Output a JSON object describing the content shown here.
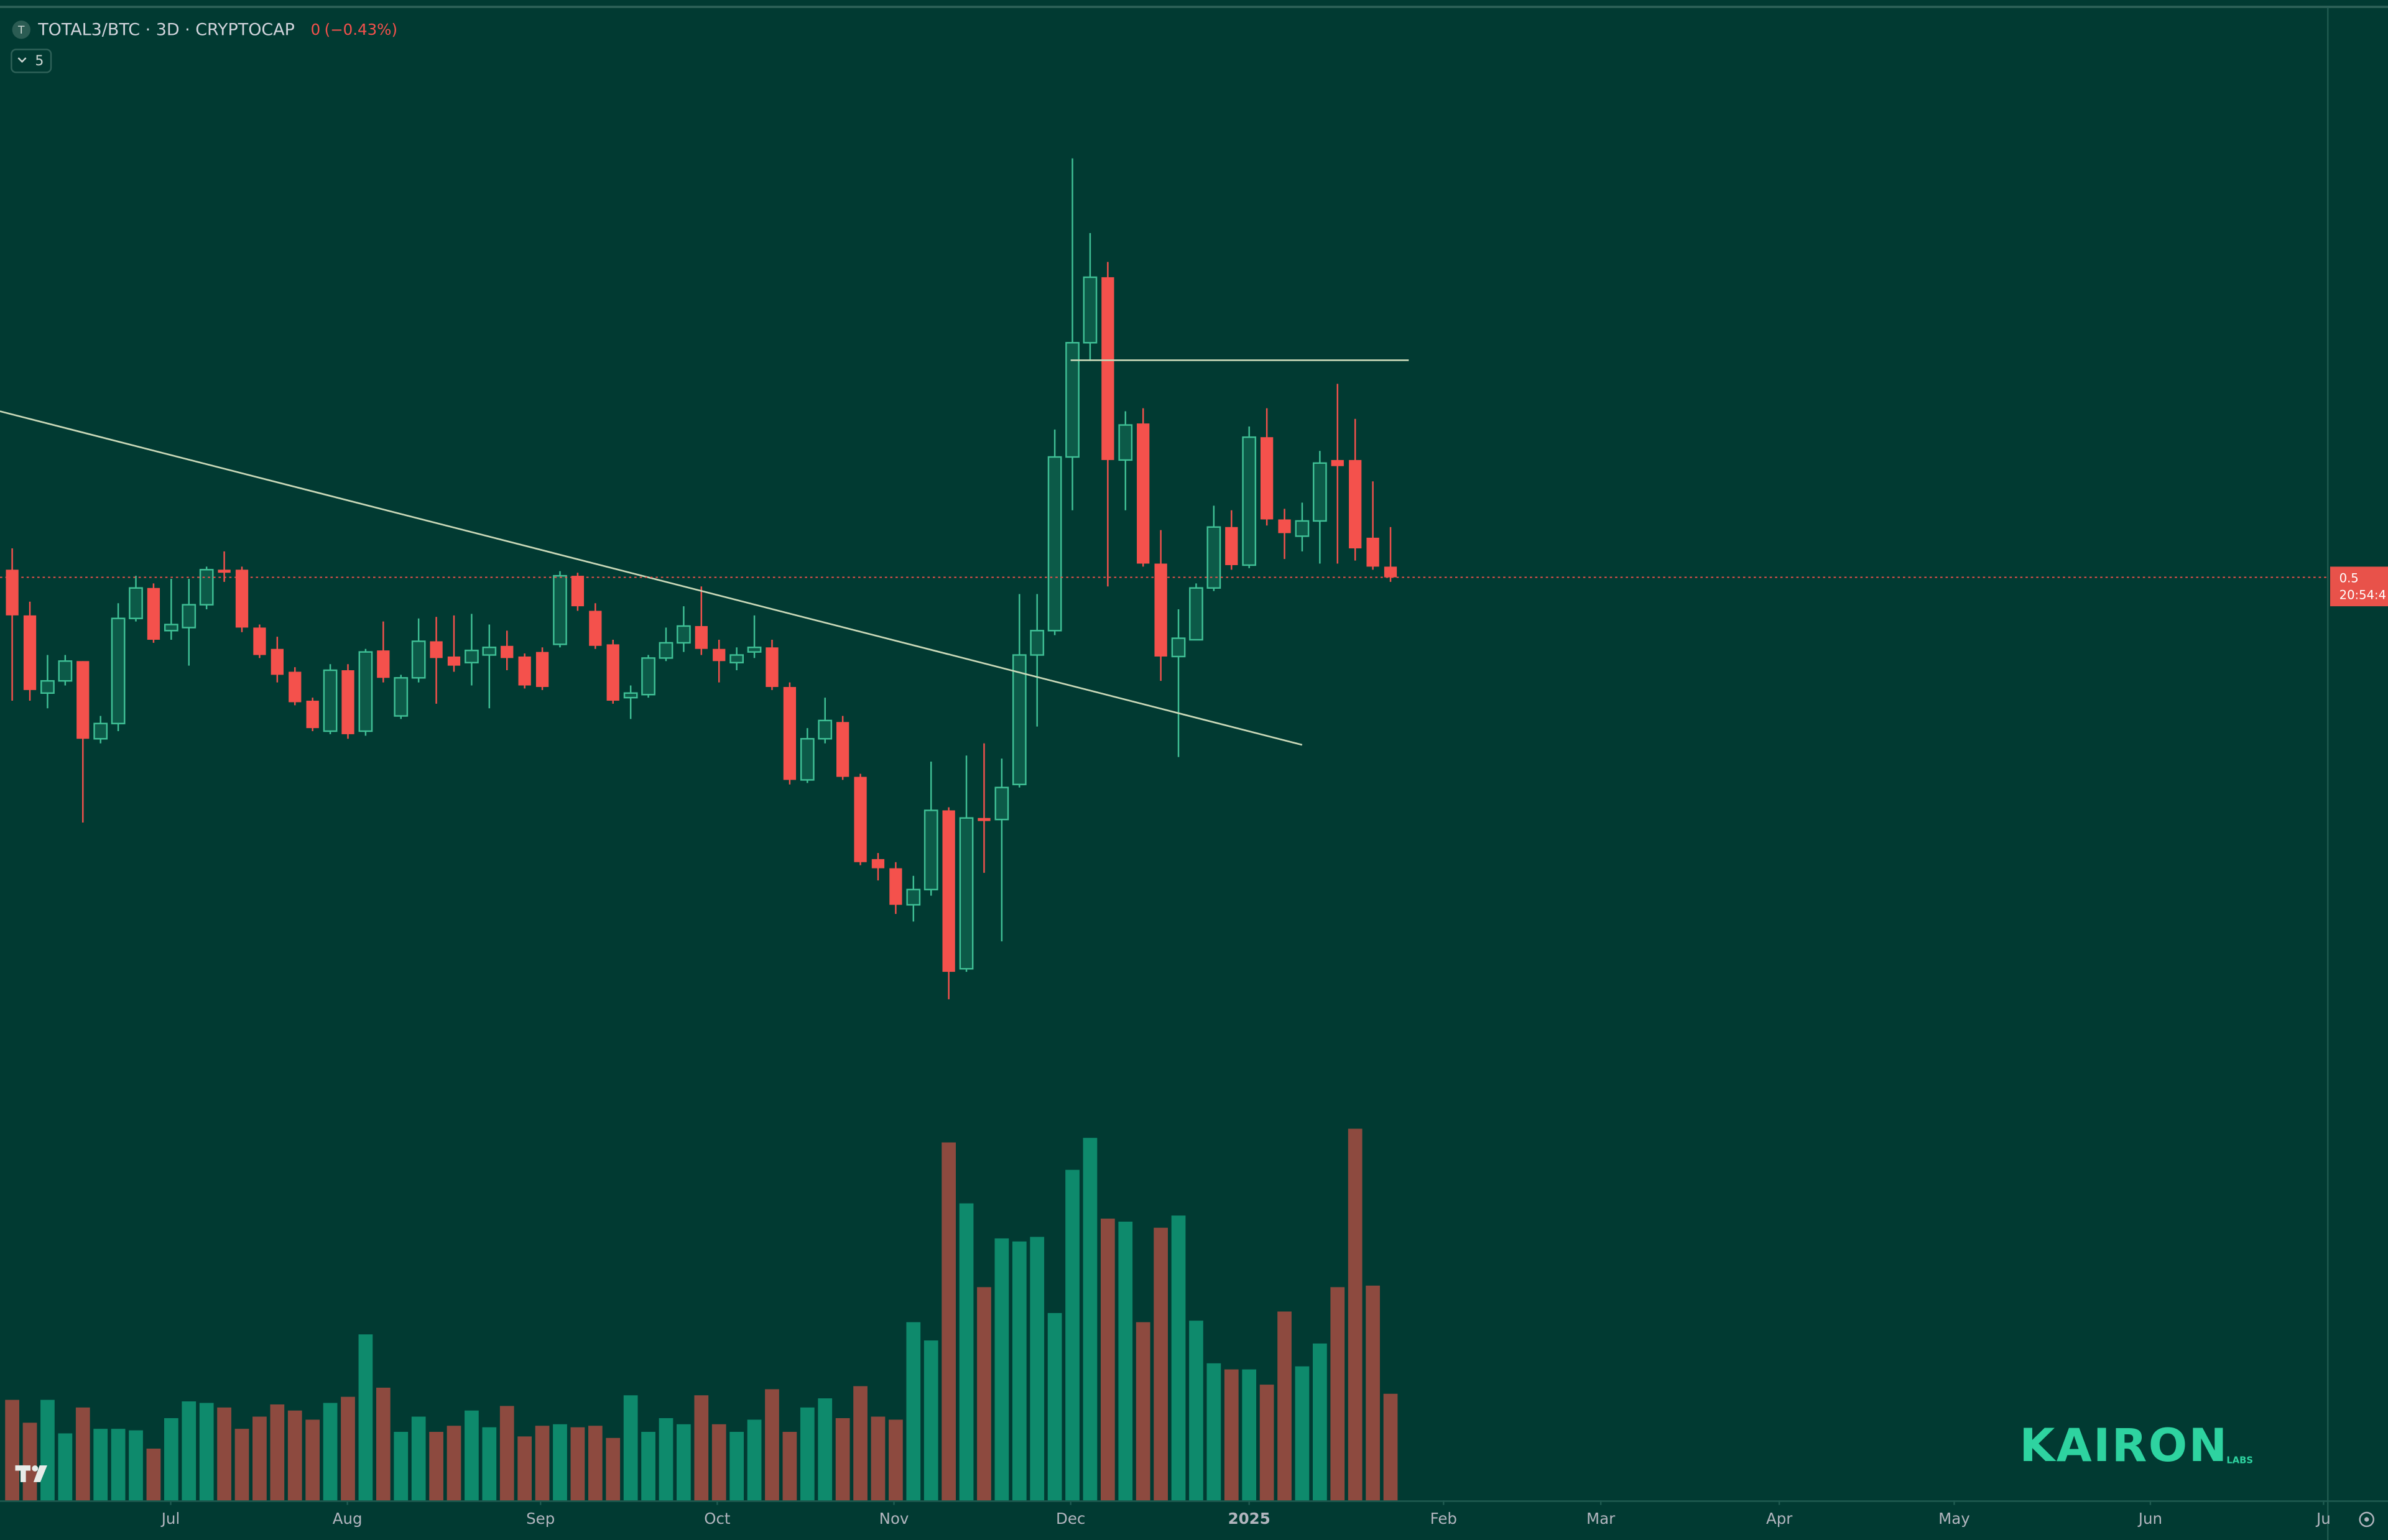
{
  "chart_data": {
    "type": "candlestick",
    "title": "TOTAL3/BTC · 3D · CRYPTOCAP",
    "change": 0,
    "change_percent": {
      "value": -0.43,
      "label": "(−0.43%)"
    },
    "indicator_count": 5,
    "up_color": "#3fbf95",
    "up_fill": "#0c5a48",
    "down_color": "#f4514c",
    "volume_up_color": "#0e8a6c",
    "volume_down_color": "#8d4a3f",
    "open": [
      0.5025,
      0.4875,
      0.462,
      0.466,
      0.4725,
      0.447,
      0.452,
      0.4865,
      0.4965,
      0.4825,
      0.4835,
      0.491,
      0.5025,
      0.5025,
      0.4835,
      0.4765,
      0.469,
      0.4595,
      0.4495,
      0.4695,
      0.4495,
      0.476,
      0.4545,
      0.467,
      0.479,
      0.474,
      0.472,
      0.4745,
      0.4775,
      0.474,
      0.4755,
      0.478,
      0.5005,
      0.489,
      0.478,
      0.4605,
      0.4615,
      0.4735,
      0.4785,
      0.484,
      0.4765,
      0.472,
      0.4755,
      0.477,
      0.464,
      0.4335,
      0.447,
      0.4525,
      0.4345,
      0.4075,
      0.4045,
      0.3925,
      0.3975,
      0.4235,
      0.3715,
      0.421,
      0.4205,
      0.432,
      0.4745,
      0.4825,
      0.5395,
      0.577,
      0.5985,
      0.5385,
      0.5505,
      0.5045,
      0.474,
      0.4795,
      0.4965,
      0.5165,
      0.504,
      0.546,
      0.519,
      0.5135,
      0.5185,
      0.5385,
      0.5385,
      0.513,
      0.5035
    ],
    "high": [
      0.5095,
      0.492,
      0.4745,
      0.4745,
      0.4725,
      0.4545,
      0.4915,
      0.5005,
      0.498,
      0.4995,
      0.4995,
      0.5035,
      0.5085,
      0.5035,
      0.4845,
      0.4805,
      0.4705,
      0.4605,
      0.4715,
      0.4715,
      0.4765,
      0.4855,
      0.468,
      0.4865,
      0.487,
      0.4875,
      0.488,
      0.4845,
      0.4825,
      0.475,
      0.477,
      0.502,
      0.5015,
      0.4915,
      0.4795,
      0.4645,
      0.4745,
      0.4835,
      0.4905,
      0.497,
      0.4795,
      0.477,
      0.4875,
      0.4795,
      0.4655,
      0.4505,
      0.4605,
      0.4545,
      0.4355,
      0.4095,
      0.4065,
      0.402,
      0.4395,
      0.4245,
      0.4415,
      0.4455,
      0.4405,
      0.4945,
      0.4945,
      0.5485,
      0.6375,
      0.613,
      0.6035,
      0.5545,
      0.5555,
      0.5155,
      0.4895,
      0.498,
      0.5235,
      0.522,
      0.5495,
      0.5555,
      0.5225,
      0.5245,
      0.5415,
      0.5635,
      0.552,
      0.5315,
      0.5165
    ],
    "low": [
      0.4595,
      0.4595,
      0.457,
      0.4645,
      0.4195,
      0.4455,
      0.4495,
      0.4855,
      0.4785,
      0.4795,
      0.471,
      0.4895,
      0.4985,
      0.482,
      0.4735,
      0.4655,
      0.458,
      0.4495,
      0.4485,
      0.447,
      0.448,
      0.4655,
      0.4535,
      0.4655,
      0.4585,
      0.469,
      0.4645,
      0.457,
      0.4695,
      0.4635,
      0.463,
      0.477,
      0.489,
      0.4765,
      0.4585,
      0.4535,
      0.4605,
      0.4725,
      0.4755,
      0.4745,
      0.4655,
      0.4695,
      0.4735,
      0.463,
      0.432,
      0.4325,
      0.4455,
      0.4335,
      0.4055,
      0.4005,
      0.3895,
      0.387,
      0.3955,
      0.3615,
      0.3705,
      0.403,
      0.3805,
      0.431,
      0.451,
      0.481,
      0.522,
      0.571,
      0.497,
      0.522,
      0.5035,
      0.466,
      0.441,
      0.4795,
      0.4955,
      0.5025,
      0.503,
      0.517,
      0.506,
      0.5085,
      0.5045,
      0.5045,
      0.5055,
      0.5025,
      0.4985
    ],
    "close": [
      0.4875,
      0.463,
      0.466,
      0.4725,
      0.447,
      0.452,
      0.4865,
      0.4965,
      0.4795,
      0.4845,
      0.491,
      0.5025,
      0.5015,
      0.4835,
      0.4745,
      0.468,
      0.459,
      0.4505,
      0.4695,
      0.4485,
      0.4755,
      0.467,
      0.467,
      0.479,
      0.4735,
      0.471,
      0.476,
      0.477,
      0.4735,
      0.4645,
      0.464,
      0.5005,
      0.4905,
      0.4775,
      0.4595,
      0.462,
      0.4735,
      0.4785,
      0.484,
      0.4765,
      0.4725,
      0.4745,
      0.477,
      0.464,
      0.4335,
      0.447,
      0.453,
      0.4345,
      0.4065,
      0.4045,
      0.3925,
      0.3975,
      0.4235,
      0.3705,
      0.421,
      0.42,
      0.431,
      0.4745,
      0.4825,
      0.5395,
      0.577,
      0.5985,
      0.5385,
      0.55,
      0.5045,
      0.474,
      0.48,
      0.4965,
      0.5165,
      0.504,
      0.546,
      0.519,
      0.5145,
      0.5185,
      0.5375,
      0.5365,
      0.5095,
      0.5035,
      0.5
    ],
    "volume": [
      66,
      51,
      66,
      44,
      61,
      47,
      47,
      46,
      34,
      54,
      65,
      64,
      61,
      47,
      55,
      63,
      59,
      53,
      64,
      68,
      109,
      74,
      45,
      55,
      45,
      49,
      59,
      48,
      62,
      42,
      49,
      50,
      48,
      49,
      41,
      69,
      45,
      54,
      50,
      69,
      50,
      45,
      53,
      73,
      45,
      61,
      67,
      54,
      75,
      55,
      53,
      117,
      105,
      235,
      195,
      140,
      172,
      170,
      173,
      123,
      217,
      238,
      185,
      183,
      117,
      179,
      187,
      118,
      90,
      86,
      86,
      76,
      124,
      88,
      103,
      140,
      244,
      141,
      70
    ],
    "ylim": [
      0.33,
      0.687
    ],
    "volume_ylim": [
      0,
      285
    ],
    "xlim": [
      -0.69,
      131
    ],
    "xticks": [
      {
        "value": 8.97,
        "label": "Jul"
      },
      {
        "value": 18.97,
        "label": "Aug"
      },
      {
        "value": 29.9,
        "label": "Sep"
      },
      {
        "value": 39.9,
        "label": "Oct"
      },
      {
        "value": 49.9,
        "label": "Nov"
      },
      {
        "value": 59.9,
        "label": "Dec"
      },
      {
        "value": 70.0,
        "label": "2025"
      },
      {
        "value": 81.0,
        "label": "Feb"
      },
      {
        "value": 89.9,
        "label": "Mar"
      },
      {
        "value": 100.0,
        "label": "Apr"
      },
      {
        "value": 109.9,
        "label": "May"
      },
      {
        "value": 121.0,
        "label": "Jun"
      },
      {
        "value": 130.8,
        "label": "Ju"
      }
    ],
    "last_price": 0.5,
    "countdown": "20:54:4",
    "watermark": "KAIRON",
    "watermark_sub": "LABS"
  }
}
